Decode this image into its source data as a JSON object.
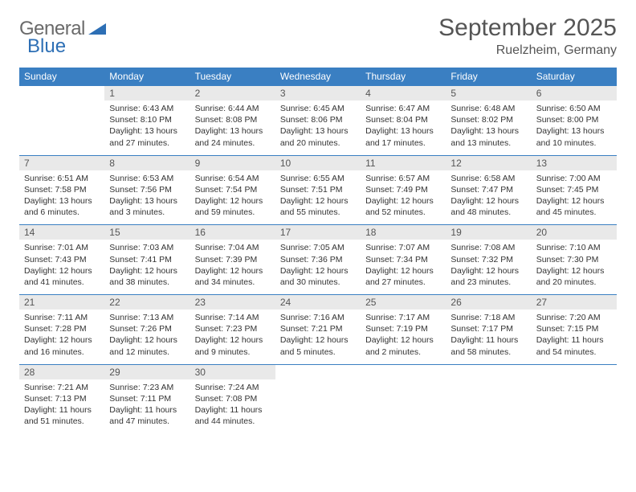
{
  "logo": {
    "word1": "General",
    "word2": "Blue"
  },
  "title": {
    "month": "September 2025",
    "location": "Ruelzheim, Germany"
  },
  "weekdays": [
    "Sunday",
    "Monday",
    "Tuesday",
    "Wednesday",
    "Thursday",
    "Friday",
    "Saturday"
  ],
  "header_bg": "#3a7fc2",
  "daynum_bg": "#e9e9e9",
  "border_color": "#3a7fc2",
  "cells": [
    [
      {
        "empty": true
      },
      {
        "n": "1",
        "sunrise": "Sunrise: 6:43 AM",
        "sunset": "Sunset: 8:10 PM",
        "day1": "Daylight: 13 hours",
        "day2": "and 27 minutes."
      },
      {
        "n": "2",
        "sunrise": "Sunrise: 6:44 AM",
        "sunset": "Sunset: 8:08 PM",
        "day1": "Daylight: 13 hours",
        "day2": "and 24 minutes."
      },
      {
        "n": "3",
        "sunrise": "Sunrise: 6:45 AM",
        "sunset": "Sunset: 8:06 PM",
        "day1": "Daylight: 13 hours",
        "day2": "and 20 minutes."
      },
      {
        "n": "4",
        "sunrise": "Sunrise: 6:47 AM",
        "sunset": "Sunset: 8:04 PM",
        "day1": "Daylight: 13 hours",
        "day2": "and 17 minutes."
      },
      {
        "n": "5",
        "sunrise": "Sunrise: 6:48 AM",
        "sunset": "Sunset: 8:02 PM",
        "day1": "Daylight: 13 hours",
        "day2": "and 13 minutes."
      },
      {
        "n": "6",
        "sunrise": "Sunrise: 6:50 AM",
        "sunset": "Sunset: 8:00 PM",
        "day1": "Daylight: 13 hours",
        "day2": "and 10 minutes."
      }
    ],
    [
      {
        "n": "7",
        "sunrise": "Sunrise: 6:51 AM",
        "sunset": "Sunset: 7:58 PM",
        "day1": "Daylight: 13 hours",
        "day2": "and 6 minutes."
      },
      {
        "n": "8",
        "sunrise": "Sunrise: 6:53 AM",
        "sunset": "Sunset: 7:56 PM",
        "day1": "Daylight: 13 hours",
        "day2": "and 3 minutes."
      },
      {
        "n": "9",
        "sunrise": "Sunrise: 6:54 AM",
        "sunset": "Sunset: 7:54 PM",
        "day1": "Daylight: 12 hours",
        "day2": "and 59 minutes."
      },
      {
        "n": "10",
        "sunrise": "Sunrise: 6:55 AM",
        "sunset": "Sunset: 7:51 PM",
        "day1": "Daylight: 12 hours",
        "day2": "and 55 minutes."
      },
      {
        "n": "11",
        "sunrise": "Sunrise: 6:57 AM",
        "sunset": "Sunset: 7:49 PM",
        "day1": "Daylight: 12 hours",
        "day2": "and 52 minutes."
      },
      {
        "n": "12",
        "sunrise": "Sunrise: 6:58 AM",
        "sunset": "Sunset: 7:47 PM",
        "day1": "Daylight: 12 hours",
        "day2": "and 48 minutes."
      },
      {
        "n": "13",
        "sunrise": "Sunrise: 7:00 AM",
        "sunset": "Sunset: 7:45 PM",
        "day1": "Daylight: 12 hours",
        "day2": "and 45 minutes."
      }
    ],
    [
      {
        "n": "14",
        "sunrise": "Sunrise: 7:01 AM",
        "sunset": "Sunset: 7:43 PM",
        "day1": "Daylight: 12 hours",
        "day2": "and 41 minutes."
      },
      {
        "n": "15",
        "sunrise": "Sunrise: 7:03 AM",
        "sunset": "Sunset: 7:41 PM",
        "day1": "Daylight: 12 hours",
        "day2": "and 38 minutes."
      },
      {
        "n": "16",
        "sunrise": "Sunrise: 7:04 AM",
        "sunset": "Sunset: 7:39 PM",
        "day1": "Daylight: 12 hours",
        "day2": "and 34 minutes."
      },
      {
        "n": "17",
        "sunrise": "Sunrise: 7:05 AM",
        "sunset": "Sunset: 7:36 PM",
        "day1": "Daylight: 12 hours",
        "day2": "and 30 minutes."
      },
      {
        "n": "18",
        "sunrise": "Sunrise: 7:07 AM",
        "sunset": "Sunset: 7:34 PM",
        "day1": "Daylight: 12 hours",
        "day2": "and 27 minutes."
      },
      {
        "n": "19",
        "sunrise": "Sunrise: 7:08 AM",
        "sunset": "Sunset: 7:32 PM",
        "day1": "Daylight: 12 hours",
        "day2": "and 23 minutes."
      },
      {
        "n": "20",
        "sunrise": "Sunrise: 7:10 AM",
        "sunset": "Sunset: 7:30 PM",
        "day1": "Daylight: 12 hours",
        "day2": "and 20 minutes."
      }
    ],
    [
      {
        "n": "21",
        "sunrise": "Sunrise: 7:11 AM",
        "sunset": "Sunset: 7:28 PM",
        "day1": "Daylight: 12 hours",
        "day2": "and 16 minutes."
      },
      {
        "n": "22",
        "sunrise": "Sunrise: 7:13 AM",
        "sunset": "Sunset: 7:26 PM",
        "day1": "Daylight: 12 hours",
        "day2": "and 12 minutes."
      },
      {
        "n": "23",
        "sunrise": "Sunrise: 7:14 AM",
        "sunset": "Sunset: 7:23 PM",
        "day1": "Daylight: 12 hours",
        "day2": "and 9 minutes."
      },
      {
        "n": "24",
        "sunrise": "Sunrise: 7:16 AM",
        "sunset": "Sunset: 7:21 PM",
        "day1": "Daylight: 12 hours",
        "day2": "and 5 minutes."
      },
      {
        "n": "25",
        "sunrise": "Sunrise: 7:17 AM",
        "sunset": "Sunset: 7:19 PM",
        "day1": "Daylight: 12 hours",
        "day2": "and 2 minutes."
      },
      {
        "n": "26",
        "sunrise": "Sunrise: 7:18 AM",
        "sunset": "Sunset: 7:17 PM",
        "day1": "Daylight: 11 hours",
        "day2": "and 58 minutes."
      },
      {
        "n": "27",
        "sunrise": "Sunrise: 7:20 AM",
        "sunset": "Sunset: 7:15 PM",
        "day1": "Daylight: 11 hours",
        "day2": "and 54 minutes."
      }
    ],
    [
      {
        "n": "28",
        "sunrise": "Sunrise: 7:21 AM",
        "sunset": "Sunset: 7:13 PM",
        "day1": "Daylight: 11 hours",
        "day2": "and 51 minutes."
      },
      {
        "n": "29",
        "sunrise": "Sunrise: 7:23 AM",
        "sunset": "Sunset: 7:11 PM",
        "day1": "Daylight: 11 hours",
        "day2": "and 47 minutes."
      },
      {
        "n": "30",
        "sunrise": "Sunrise: 7:24 AM",
        "sunset": "Sunset: 7:08 PM",
        "day1": "Daylight: 11 hours",
        "day2": "and 44 minutes."
      },
      {
        "empty": true
      },
      {
        "empty": true
      },
      {
        "empty": true
      },
      {
        "empty": true
      }
    ]
  ]
}
